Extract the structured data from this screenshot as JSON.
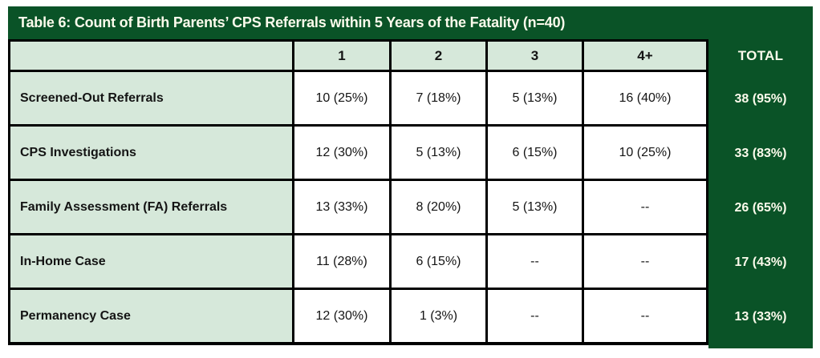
{
  "colors": {
    "dark_green": "#0a5327",
    "light_green": "#d6e8da",
    "border_black": "#000000",
    "title_text": "#fcfbec"
  },
  "chart_data": {
    "type": "table",
    "title": "Table 6: Count of Birth Parents’ CPS Referrals within 5 Years of the Fatality (n=40)",
    "n": 40,
    "category_columns": [
      "1",
      "2",
      "3",
      "4+"
    ],
    "total_label": "TOTAL",
    "rows": [
      {
        "label": "Screened-Out Referrals",
        "values": [
          "10 (25%)",
          "7 (18%)",
          "5 (13%)",
          "16 (40%)"
        ],
        "total": "38 (95%)"
      },
      {
        "label": "CPS Investigations",
        "values": [
          "12 (30%)",
          "5 (13%)",
          "6 (15%)",
          "10 (25%)"
        ],
        "total": "33 (83%)"
      },
      {
        "label": "Family Assessment (FA) Referrals",
        "values": [
          "13 (33%)",
          "8 (20%)",
          "5 (13%)",
          "--"
        ],
        "total": "26 (65%)"
      },
      {
        "label": "In-Home Case",
        "values": [
          "11 (28%)",
          "6 (15%)",
          "--",
          "--"
        ],
        "total": "17 (43%)"
      },
      {
        "label": "Permanency Case",
        "values": [
          "12 (30%)",
          "1 (3%)",
          "--",
          "--"
        ],
        "total": "13 (33%)"
      }
    ]
  }
}
